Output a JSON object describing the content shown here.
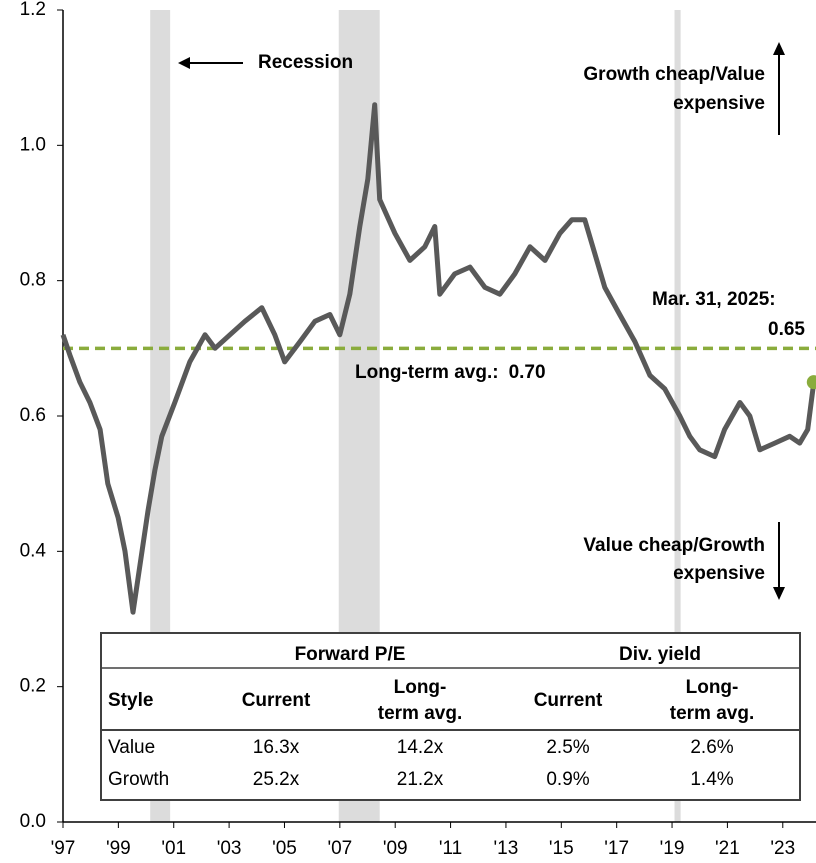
{
  "chart_data": {
    "type": "line",
    "x": [
      1997.0,
      1997.25,
      1997.61,
      1997.97,
      1998.34,
      1998.62,
      1998.99,
      1999.24,
      1999.53,
      1999.78,
      2000.07,
      2000.32,
      2000.57,
      2001.04,
      2001.58,
      2002.13,
      2002.49,
      2003.03,
      2003.57,
      2004.18,
      2004.65,
      2005.01,
      2005.56,
      2006.1,
      2006.64,
      2007.0,
      2007.36,
      2007.72,
      2008.01,
      2008.26,
      2008.44,
      2008.99,
      2009.53,
      2010.07,
      2010.43,
      2010.61,
      2011.15,
      2011.7,
      2012.24,
      2012.78,
      2013.32,
      2013.87,
      2014.41,
      2014.95,
      2015.38,
      2015.85,
      2016.21,
      2016.57,
      2017.11,
      2017.66,
      2018.2,
      2018.74,
      2019.28,
      2019.64,
      2020.0,
      2020.54,
      2020.9,
      2021.45,
      2021.81,
      2022.17,
      2022.71,
      2023.25,
      2023.61,
      2023.9,
      2024.12
    ],
    "values": [
      0.72,
      0.69,
      0.65,
      0.62,
      0.58,
      0.5,
      0.45,
      0.4,
      0.31,
      0.38,
      0.46,
      0.52,
      0.57,
      0.62,
      0.68,
      0.72,
      0.7,
      0.72,
      0.74,
      0.76,
      0.72,
      0.68,
      0.71,
      0.74,
      0.75,
      0.72,
      0.78,
      0.88,
      0.95,
      1.06,
      0.92,
      0.87,
      0.83,
      0.85,
      0.88,
      0.78,
      0.81,
      0.82,
      0.79,
      0.78,
      0.81,
      0.85,
      0.83,
      0.87,
      0.89,
      0.89,
      0.84,
      0.79,
      0.75,
      0.71,
      0.66,
      0.64,
      0.6,
      0.57,
      0.55,
      0.54,
      0.58,
      0.62,
      0.6,
      0.55,
      0.56,
      0.57,
      0.56,
      0.58,
      0.65
    ],
    "color": "#595959",
    "end_color": "#8aac3c",
    "xlim": [
      1997,
      2024.2
    ],
    "xticks": [
      {
        "value": 1997,
        "label": "'97"
      },
      {
        "value": 1999,
        "label": "'99"
      },
      {
        "value": 2001,
        "label": "'01"
      },
      {
        "value": 2003,
        "label": "'03"
      },
      {
        "value": 2005,
        "label": "'05"
      },
      {
        "value": 2007,
        "label": "'07"
      },
      {
        "value": 2009,
        "label": "'09"
      },
      {
        "value": 2011,
        "label": "'11"
      },
      {
        "value": 2013,
        "label": "'13"
      },
      {
        "value": 2015,
        "label": "'15"
      },
      {
        "value": 2017,
        "label": "'17"
      },
      {
        "value": 2019,
        "label": "'19"
      },
      {
        "value": 2021,
        "label": "'21"
      },
      {
        "value": 2023,
        "label": "'23"
      }
    ],
    "ylim": [
      0,
      1.2
    ],
    "yticks": [
      {
        "value": 0,
        "label": "0.0"
      },
      0.2,
      0.4,
      0.6,
      0.8,
      {
        "value": 1,
        "label": "1.0"
      },
      0.2,
      1.2
    ],
    "recessions": [
      [
        2000.15,
        2000.87
      ],
      [
        2006.96,
        2008.44
      ],
      [
        2019.09,
        2019.31
      ]
    ],
    "recession_color": "#dcdcdc",
    "recession_label": "Recession",
    "average": {
      "label": "Long-term avg.:",
      "value": 0.7,
      "value_label": "0.70",
      "color": "#8aac3c"
    },
    "end_date_label": "Mar. 31, 2025:",
    "top_note": [
      "Growth cheap/Value",
      "expensive"
    ],
    "bottom_note": [
      "Value cheap/Growth",
      "expensive"
    ]
  },
  "table": {
    "group_headers": [
      "Forward P/E",
      "Div. yield"
    ],
    "headers": [
      "Style",
      "Current",
      [
        "Long-",
        "term avg."
      ],
      "Current",
      [
        "Long-",
        "term avg."
      ]
    ],
    "rows": [
      [
        "Value",
        "16.3x",
        "14.2x",
        "2.5%",
        "2.6%"
      ],
      [
        "Growth",
        "25.2x",
        "21.2x",
        "0.9%",
        "1.4%"
      ]
    ]
  }
}
